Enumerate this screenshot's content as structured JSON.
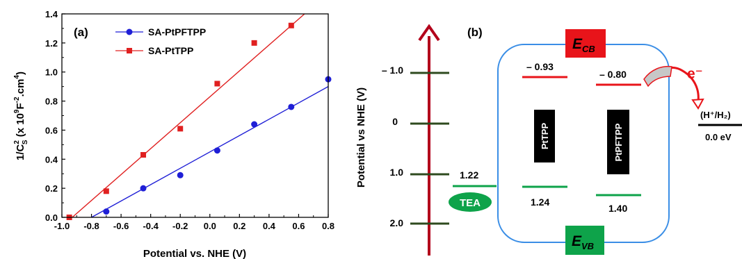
{
  "panel_a": {
    "label": "(a)",
    "xlabel": "Potential vs. NHE (V)",
    "ylabel_main": "1/C",
    "ylabel_sub": "S",
    "ylabel_sup": "2",
    "ylabel_rest_1": " (x 10",
    "ylabel_sup_9": "9",
    "ylabel_rest_2": "F",
    "ylabel_sup_m2": "-2",
    "ylabel_rest_3": ".cm",
    "ylabel_sup_4": "4",
    "ylabel_rest_4": ")",
    "x_ticks": [
      "-1.0",
      "-0.8",
      "-0.6",
      "-0.4",
      "-0.2",
      "0.0",
      "0.2",
      "0.4",
      "0.6",
      "0.8"
    ],
    "y_ticks": [
      "0.0",
      "0.2",
      "0.4",
      "0.6",
      "0.8",
      "1.0",
      "1.2",
      "1.4"
    ]
  },
  "chart_data": {
    "type": "scatter",
    "title": "",
    "xlabel": "Potential vs. NHE (V)",
    "ylabel": "1/C_S^2 (x 10^9 F^-2.cm^4)",
    "xlim": [
      -1.0,
      0.8
    ],
    "ylim": [
      0.0,
      1.4
    ],
    "legend_position": "top-left",
    "series": [
      {
        "name": "SA-PtPFTPP",
        "color": "#1f1fd6",
        "marker": "circle",
        "x": [
          -0.7,
          -0.45,
          -0.2,
          0.05,
          0.3,
          0.55,
          0.8
        ],
        "y": [
          0.04,
          0.2,
          0.29,
          0.46,
          0.64,
          0.76,
          0.95
        ],
        "fit_line": {
          "x": [
            -0.8,
            0.8
          ],
          "y": [
            0.0,
            0.9
          ]
        }
      },
      {
        "name": "SA-PtTPP",
        "color": "#e02020",
        "marker": "square",
        "x": [
          -0.95,
          -0.7,
          -0.45,
          -0.2,
          0.05,
          0.3,
          0.55
        ],
        "y": [
          0.0,
          0.18,
          0.43,
          0.61,
          0.92,
          1.2,
          1.32
        ],
        "fit_line": {
          "x": [
            -0.93,
            0.64
          ],
          "y": [
            0.0,
            1.4
          ]
        }
      }
    ]
  },
  "panel_b": {
    "label": "(b)",
    "axis_label": "Potential vs NHE (V)",
    "scale_ticks": [
      "– 1.0",
      "0",
      "1.0",
      "2.0"
    ],
    "ecb_letter": "E",
    "ecb_sub": "CB",
    "evb_letter": "E",
    "evb_sub": "VB",
    "ptpp_label": "PtTPP",
    "ptpfptpp_label": "PtPFTPP",
    "ptpp_cb": "– 0.93",
    "ptpfptpp_cb": "– 0.80",
    "ptpp_vb": "1.24",
    "ptpfptpp_vb": "1.40",
    "tea_value": "1.22",
    "tea_label": "TEA",
    "electron_label": "e⁻",
    "redox_couple": "(H⁺/H₂)",
    "redox_value": "0.0 eV",
    "colors": {
      "cb": "#e8141a",
      "vb": "#0ea34a",
      "box": "#3a8ee6",
      "arrow": "#b3001b",
      "tick": "#2e4a1e"
    }
  }
}
